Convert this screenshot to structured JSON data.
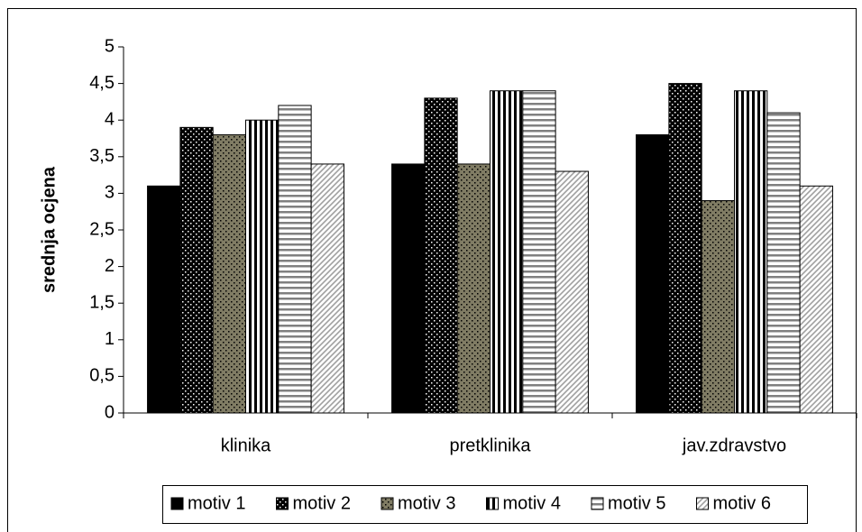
{
  "chart_data": {
    "type": "bar",
    "y_label": "srednja ocjena",
    "categories": [
      "klinika",
      "pretklinika",
      "jav.zdravstvo"
    ],
    "series": [
      {
        "name": "motiv 1",
        "color": "#000000",
        "pattern": "solid",
        "values": [
          3.1,
          3.4,
          3.8
        ]
      },
      {
        "name": "motiv 2",
        "color": "#000000",
        "pattern": "dots-light",
        "values": [
          3.9,
          4.3,
          4.5
        ]
      },
      {
        "name": "motiv 3",
        "color": "#807c64",
        "pattern": "dots-dark",
        "values": [
          3.8,
          3.4,
          2.9
        ]
      },
      {
        "name": "motiv 4",
        "color": "#000000",
        "pattern": "vertical-stripes",
        "values": [
          4.0,
          4.4,
          4.4
        ]
      },
      {
        "name": "motiv 5",
        "color": "#808080",
        "pattern": "horizontal-stripes",
        "values": [
          4.2,
          4.4,
          4.1
        ]
      },
      {
        "name": "motiv 6",
        "color": "#a0a0a0",
        "pattern": "diagonal-stripes",
        "values": [
          3.4,
          3.3,
          3.1
        ]
      }
    ],
    "ylim": [
      0,
      5
    ],
    "yticks": [
      0,
      {
        "value": 0.5,
        "label": "0,5"
      },
      1,
      {
        "value": 1.5,
        "label": "1,5"
      },
      2,
      {
        "value": 2.5,
        "label": "2,5"
      },
      3,
      {
        "value": 3.5,
        "label": "3,5"
      },
      4,
      {
        "value": 4.5,
        "label": "4,5"
      },
      5
    ],
    "grid": false,
    "legend": "bottom"
  }
}
